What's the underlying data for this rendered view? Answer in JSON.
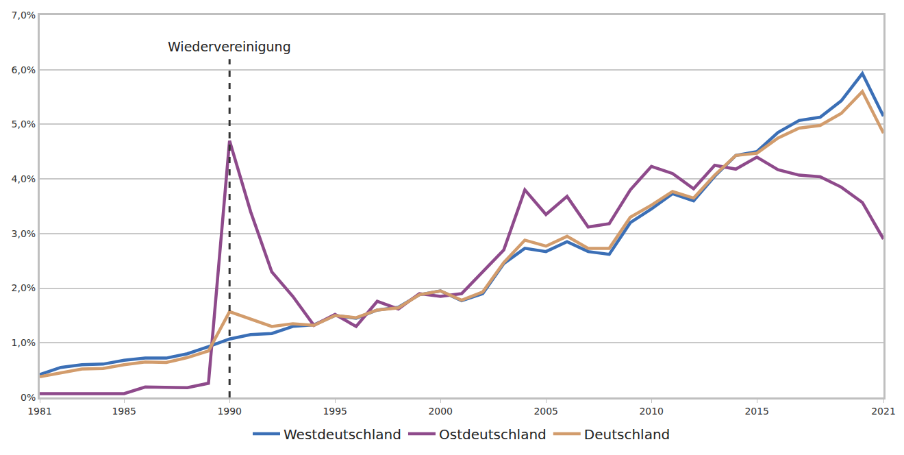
{
  "chart_data": {
    "type": "line",
    "x": [
      1981,
      1982,
      1983,
      1984,
      1985,
      1986,
      1987,
      1988,
      1989,
      1990,
      1991,
      1992,
      1993,
      1994,
      1995,
      1996,
      1997,
      1998,
      1999,
      2000,
      2001,
      2002,
      2003,
      2004,
      2005,
      2006,
      2007,
      2008,
      2009,
      2010,
      2011,
      2012,
      2013,
      2014,
      2015,
      2016,
      2017,
      2018,
      2019,
      2020,
      2021
    ],
    "series": [
      {
        "name": "Westdeutschland",
        "color": "#3b6fb6",
        "values": [
          0.42,
          0.55,
          0.6,
          0.61,
          0.68,
          0.72,
          0.72,
          0.8,
          0.93,
          1.07,
          1.15,
          1.17,
          1.3,
          1.33,
          1.5,
          1.45,
          1.6,
          1.65,
          1.88,
          1.95,
          1.77,
          1.9,
          2.45,
          2.73,
          2.67,
          2.85,
          2.67,
          2.62,
          3.2,
          3.45,
          3.73,
          3.6,
          4.05,
          4.43,
          4.5,
          4.85,
          5.07,
          5.13,
          5.43,
          5.93,
          5.15
        ]
      },
      {
        "name": "Ostdeutschland",
        "color": "#8e4a8b",
        "values": [
          0.07,
          0.07,
          0.07,
          0.07,
          0.07,
          0.19,
          0.19,
          0.18,
          0.26,
          4.7,
          3.4,
          2.3,
          1.85,
          1.32,
          1.52,
          1.3,
          1.76,
          1.62,
          1.9,
          1.85,
          1.9,
          2.3,
          2.7,
          3.8,
          3.35,
          3.68,
          3.12,
          3.18,
          3.8,
          4.23,
          4.1,
          3.82,
          4.25,
          4.18,
          4.4,
          4.17,
          4.07,
          4.04,
          3.85,
          3.57,
          2.9
        ]
      },
      {
        "name": "Deutschland",
        "color": "#d29c6c",
        "values": [
          0.38,
          0.45,
          0.52,
          0.53,
          0.6,
          0.65,
          0.64,
          0.73,
          0.85,
          1.57,
          1.44,
          1.3,
          1.35,
          1.32,
          1.5,
          1.46,
          1.6,
          1.64,
          1.88,
          1.95,
          1.78,
          1.93,
          2.47,
          2.88,
          2.77,
          2.95,
          2.73,
          2.73,
          3.3,
          3.52,
          3.77,
          3.65,
          4.07,
          4.43,
          4.47,
          4.75,
          4.93,
          4.98,
          5.2,
          5.6,
          4.84
        ]
      }
    ],
    "xlim": [
      1981,
      2021
    ],
    "xticks": [
      1981,
      1985,
      1990,
      1995,
      2000,
      2005,
      2010,
      2015,
      2021
    ],
    "ylim": [
      0,
      7
    ],
    "yticks": [
      {
        "value": 0,
        "label": "0%"
      },
      {
        "value": 1,
        "label": "1,0%"
      },
      {
        "value": 2,
        "label": "2,0%"
      },
      {
        "value": 3,
        "label": "3,0%"
      },
      {
        "value": 4,
        "label": "4,0%"
      },
      {
        "value": 5,
        "label": "5,0%"
      },
      {
        "value": 6,
        "label": "6,0%"
      },
      {
        "value": 7,
        "label": "7,0%"
      }
    ],
    "annotations": [
      {
        "text": "Wiedervereinigung",
        "x": 1990
      }
    ],
    "grid": true,
    "legend": "bottom"
  }
}
